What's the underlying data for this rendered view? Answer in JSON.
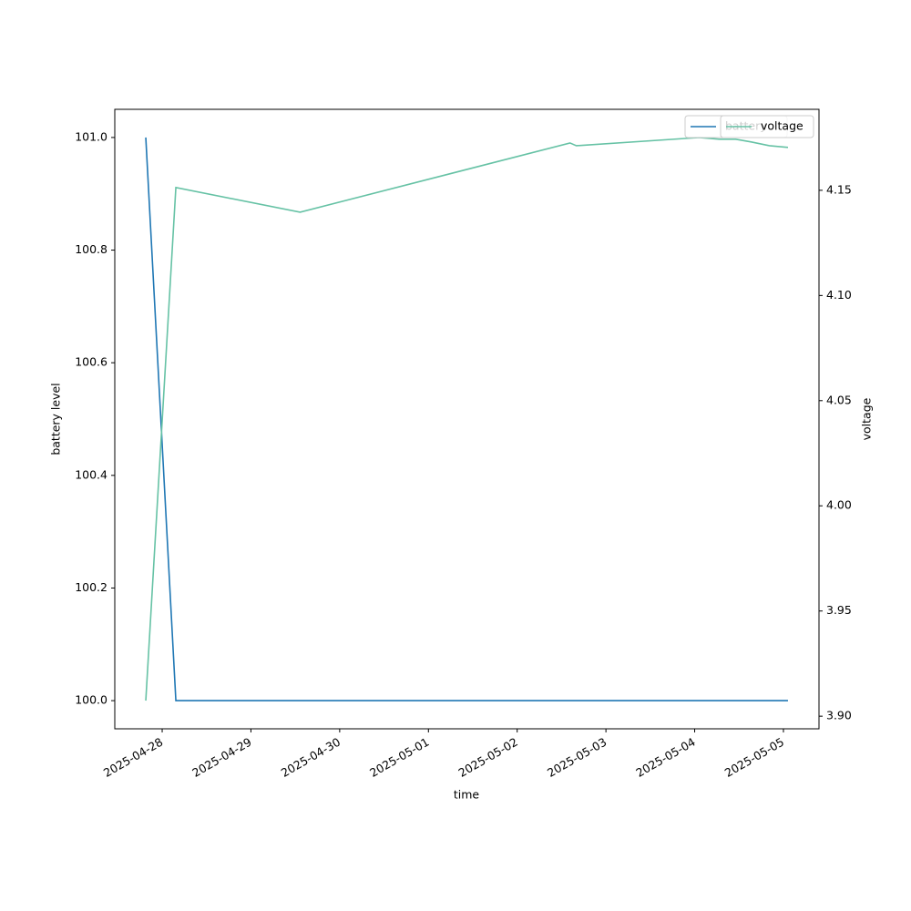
{
  "chart_data": {
    "type": "line",
    "xlabel": "time",
    "ylabel": "battery level",
    "y2label": "voltage",
    "xlim": [
      "2025-04-27T11:11",
      "2025-05-05T09:37"
    ],
    "xticks": [
      "2025-04-28",
      "2025-04-29",
      "2025-04-30",
      "2025-05-01",
      "2025-05-02",
      "2025-05-03",
      "2025-05-04",
      "2025-05-05"
    ],
    "ylim": [
      99.95,
      101.05
    ],
    "yticks": [
      {
        "value": 100.0,
        "label": "100.0"
      },
      {
        "value": 100.2,
        "label": "100.2"
      },
      {
        "value": 100.4,
        "label": "100.4"
      },
      {
        "value": 100.6,
        "label": "100.6"
      },
      {
        "value": 100.8,
        "label": "100.8"
      },
      {
        "value": 101.0,
        "label": "101.0"
      }
    ],
    "y2lim": [
      3.894,
      4.1885
    ],
    "y2ticks": [
      {
        "value": 3.9,
        "label": "3.90"
      },
      {
        "value": 3.95,
        "label": "3.95"
      },
      {
        "value": 4.0,
        "label": "4.00"
      },
      {
        "value": 4.05,
        "label": "4.05"
      },
      {
        "value": 4.1,
        "label": "4.10"
      },
      {
        "value": 4.15,
        "label": "4.15"
      }
    ],
    "series": [
      {
        "name": "battery",
        "color": "#1f77b4",
        "axis": "y",
        "x": [
          "2025-04-27T19:34",
          "2025-04-28T03:42",
          "2025-05-05T01:14"
        ],
        "values": [
          101.0,
          100.0,
          100.0
        ]
      },
      {
        "name": "voltage",
        "color": "#66c2a5",
        "axis": "y2",
        "x": [
          "2025-04-27T19:34",
          "2025-04-28T03:42",
          "2025-04-29T13:18",
          "2025-05-02T14:17",
          "2025-05-02T16:00",
          "2025-05-04T01:14",
          "2025-05-04T06:38",
          "2025-05-04T11:05",
          "2025-05-04T15:17",
          "2025-05-04T20:12",
          "2025-05-05T01:14"
        ],
        "values": [
          3.9074,
          4.1513,
          4.1396,
          4.1725,
          4.1712,
          4.1751,
          4.1743,
          4.1743,
          4.173,
          4.1712,
          4.1704
        ]
      }
    ]
  }
}
